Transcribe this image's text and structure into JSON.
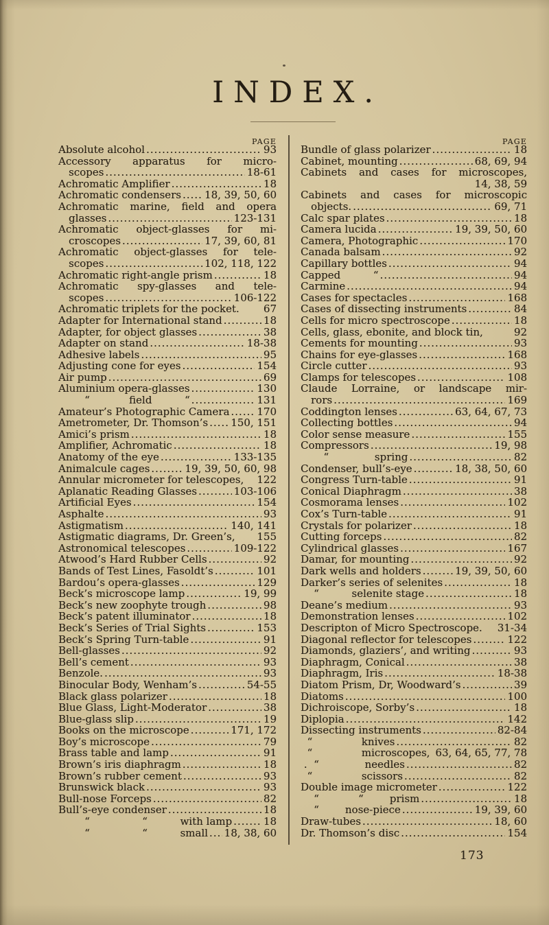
{
  "page": {
    "title": "INDEX.",
    "col_header": "PAGE",
    "page_number": "173",
    "paper_color": "#d4c59d",
    "ink_color": "#2a2217"
  },
  "columns": {
    "left": [
      {
        "t": "Absolute alcohol",
        "p": "93",
        "l": 1
      },
      {
        "t": "Accessory apparatus for micro-",
        "j": 1
      },
      {
        "t": "scopes",
        "p": "18-61",
        "l": 1,
        "i": 1
      },
      {
        "t": "Achromatic Amplifier",
        "p": "18",
        "l": 1
      },
      {
        "t": "Achromatic condensers",
        "p": "18, 39, 50, 60",
        "l": 1
      },
      {
        "t": "Achromatic marine, field and opera",
        "j": 1
      },
      {
        "t": "glasses",
        "p": "123-131",
        "l": 1,
        "i": 1
      },
      {
        "t": "Achromatic object-glasses for mi-",
        "j": 1
      },
      {
        "t": "croscopes",
        "p": "17, 39, 60, 81",
        "l": 1,
        "i": 1
      },
      {
        "t": "Achromatic object-glasses for tele-",
        "j": 1
      },
      {
        "t": "scopes",
        "p": "102, 118, 122",
        "l": 1,
        "i": 1
      },
      {
        "t": "Achromatic right-angle prism",
        "p": "18",
        "l": 1
      },
      {
        "t": "Achromatic spy-glasses and tele-",
        "j": 1
      },
      {
        "t": "scopes",
        "p": "106-122",
        "l": 1,
        "i": 1
      },
      {
        "t": "Achromatic triplets for the pocket.",
        "p": "67"
      },
      {
        "t": "Adapter for International stand",
        "p": "18",
        "l": 1
      },
      {
        "t": "Adapter, for object glasses",
        "p": "38",
        "l": 1
      },
      {
        "t": "Adapter on stand",
        "p": "18-38",
        "l": 1
      },
      {
        "t": "Adhesive labels",
        "p": "95",
        "l": 1
      },
      {
        "t": "Adjusting cone for eyes",
        "p": "154",
        "l": 1
      },
      {
        "t": "Air pump",
        "p": "69",
        "l": 1
      },
      {
        "t": "Aluminium opera-glasses",
        "p": "130",
        "l": 1
      },
      {
        "t": "        “            field          “",
        "p": "131",
        "l": 1
      },
      {
        "t": "Amateur’s Photographic Camera",
        "p": "170",
        "l": 1
      },
      {
        "t": "Ametrometer, Dr. Thomson’s",
        "p": "150, 151",
        "l": 1
      },
      {
        "t": "Amici’s prism",
        "p": "18",
        "l": 1
      },
      {
        "t": "Amplifier, Achromatic",
        "p": "18",
        "l": 1
      },
      {
        "t": "Anatomy of the eye",
        "p": "133-135",
        "l": 1
      },
      {
        "t": "Animalcule cages",
        "p": "19, 39, 50, 60, 98",
        "l": 1
      },
      {
        "t": "Annular micrometer for telescopes,",
        "p": "122"
      },
      {
        "t": "Aplanatic Reading Glasses",
        "p": "103-106",
        "l": 1
      },
      {
        "t": "Artificial Eyes",
        "p": "154",
        "l": 1
      },
      {
        "t": "Asphalte",
        "p": "93",
        "l": 1
      },
      {
        "t": "Astigmatism",
        "p": "140, 141",
        "l": 1
      },
      {
        "t": "Astigmatic diagrams, Dr. Green’s,",
        "p": "155"
      },
      {
        "t": "Astronomical telescopes",
        "p": "109-122",
        "l": 1
      },
      {
        "t": "Atwood’s Hard Rubber Cells",
        "p": "92",
        "l": 1
      },
      {
        "t": "Bands of Test Lines, Fasoldt’s",
        "p": "101",
        "l": 1
      },
      {
        "t": "Bardou’s opera-glasses",
        "p": "129",
        "l": 1
      },
      {
        "t": "Beck’s microscope lamp",
        "p": "19, 99",
        "l": 1
      },
      {
        "t": "Beck’s new zoophyte trough",
        "p": "98",
        "l": 1
      },
      {
        "t": "Beck’s patent illuminator",
        "p": "18",
        "l": 1
      },
      {
        "t": "Beck’s Series of Trial Sights",
        "p": "153",
        "l": 1
      },
      {
        "t": "Beck’s Spring Turn-table",
        "p": "91",
        "l": 1
      },
      {
        "t": "Bell-glasses",
        "p": "92",
        "l": 1
      },
      {
        "t": "Bell’s cement",
        "p": "93",
        "l": 1
      },
      {
        "t": "Benzole.",
        "p": "93",
        "l": 1
      },
      {
        "t": "Binocular Body, Wenham’s",
        "p": "54-55",
        "l": 1
      },
      {
        "t": "Black glass polarizer",
        "p": "18",
        "l": 1
      },
      {
        "t": "Blue Glass, Light-Moderator",
        "p": "38",
        "l": 1
      },
      {
        "t": "Blue-glass slip",
        "p": "19",
        "l": 1
      },
      {
        "t": "Books on the microscope",
        "p": "171, 172",
        "l": 1
      },
      {
        "t": "Boy’s microscope",
        "p": "79",
        "l": 1
      },
      {
        "t": "Brass table and lamp",
        "p": "91",
        "l": 1
      },
      {
        "t": "Brown’s iris diaphragm",
        "p": "18",
        "l": 1
      },
      {
        "t": "Brown’s rubber cement",
        "p": "93",
        "l": 1
      },
      {
        "t": "Brunswick black",
        "p": "93",
        "l": 1
      },
      {
        "t": "Bull-nose Forceps",
        "p": "82",
        "l": 1
      },
      {
        "t": "Bull’s-eye condenser",
        "p": "18",
        "l": 1
      },
      {
        "t": "        “                “          with lamp",
        "p": "18",
        "l": 1
      },
      {
        "t": "        “                “          small",
        "p": "18, 38, 60",
        "l": 1
      }
    ],
    "right": [
      {
        "t": "Bundle of glass polarizer",
        "p": "18",
        "l": 1
      },
      {
        "t": "Cabinet, mounting",
        "p": "68, 69, 94",
        "l": 1
      },
      {
        "t": "Cabinets and cases for microscopes,",
        "j": 1
      },
      {
        "t": "",
        "p": "14, 38, 59"
      },
      {
        "t": "Cabinets and cases for microscopic",
        "j": 1
      },
      {
        "t": "objects.",
        "p": "69, 71",
        "l": 1,
        "i": 1
      },
      {
        "t": "Calc spar plates",
        "p": "18",
        "l": 1
      },
      {
        "t": "Camera lucida",
        "p": "19, 39, 50, 60",
        "l": 1
      },
      {
        "t": "Camera, Photographic",
        "p": "170",
        "l": 1
      },
      {
        "t": "Canada balsam",
        "p": "92",
        "l": 1
      },
      {
        "t": "Capillary bottles",
        "p": "94",
        "l": 1
      },
      {
        "t": "Capped          “",
        "p": "94",
        "l": 1
      },
      {
        "t": "Carmine",
        "p": "94",
        "l": 1
      },
      {
        "t": "Cases for spectacles",
        "p": "168",
        "l": 1
      },
      {
        "t": "Cases of dissecting instruments",
        "p": "84",
        "l": 1
      },
      {
        "t": "Cells for micro spectroscope",
        "p": "18",
        "l": 1
      },
      {
        "t": "Cells, glass, ebonite, and block tin,",
        "p": "92"
      },
      {
        "t": "Cements for mounting",
        "p": "93",
        "l": 1
      },
      {
        "t": "Chains for eye-glasses",
        "p": "168",
        "l": 1
      },
      {
        "t": "Circle cutter",
        "p": "93",
        "l": 1
      },
      {
        "t": "Clamps for telescopes",
        "p": "108",
        "l": 1
      },
      {
        "t": "Claude Lorraine, or landscape mir-",
        "j": 1
      },
      {
        "t": "rors",
        "p": "169",
        "l": 1,
        "i": 1
      },
      {
        "t": "Coddington lenses",
        "p": "63, 64, 67, 73",
        "l": 1
      },
      {
        "t": "Collecting bottles",
        "p": "94",
        "l": 1
      },
      {
        "t": "Color sense measure",
        "p": "155",
        "l": 1
      },
      {
        "t": "Compressors",
        "p": "19, 98",
        "l": 1
      },
      {
        "t": "       “              spring",
        "p": "82",
        "l": 1
      },
      {
        "t": "Condenser, bull’s-eye",
        "p": "18, 38, 50, 60",
        "l": 1
      },
      {
        "t": "Congress Turn-table",
        "p": "91",
        "l": 1
      },
      {
        "t": "Conical Diaphragm",
        "p": "38",
        "l": 1
      },
      {
        "t": "Cosmorama lenses",
        "p": "102",
        "l": 1
      },
      {
        "t": "Cox’s Turn-table",
        "p": "91",
        "l": 1
      },
      {
        "t": "Crystals for polarizer",
        "p": "18",
        "l": 1
      },
      {
        "t": "Cutting forceps",
        "p": "82",
        "l": 1
      },
      {
        "t": "Cylindrical glasses",
        "p": "167",
        "l": 1
      },
      {
        "t": "Damar, for mounting",
        "p": "92",
        "l": 1
      },
      {
        "t": "Dark wells and holders",
        "p": "19, 39, 50, 60",
        "l": 1
      },
      {
        "t": "Darker’s series of selenites",
        "p": "18",
        "l": 1
      },
      {
        "t": "    “          selenite stage",
        "p": "18",
        "l": 1
      },
      {
        "t": "Deane’s medium",
        "p": "93",
        "l": 1
      },
      {
        "t": "Demonstration lenses",
        "p": "102",
        "l": 1
      },
      {
        "t": "Descripton of Micro Spectroscope.",
        "p": "31-34"
      },
      {
        "t": "Diagonal reflector for telescopes",
        "p": "122",
        "l": 1
      },
      {
        "t": "Diamonds, glaziers’, and writing",
        "p": "93",
        "l": 1
      },
      {
        "t": "Diaphragm, Conical",
        "p": "38",
        "l": 1
      },
      {
        "t": "Diaphragm, Iris",
        "p": "18-38",
        "l": 1
      },
      {
        "t": "Diatom Prism, Dr, Woodward’s",
        "p": "39",
        "l": 1
      },
      {
        "t": "Diatoms",
        "p": "100",
        "l": 1
      },
      {
        "t": "Dichroiscope, Sorby’s",
        "p": "18",
        "l": 1
      },
      {
        "t": "Diplopia",
        "p": "142",
        "l": 1
      },
      {
        "t": "Dissecting instruments",
        "p": "82-84",
        "l": 1
      },
      {
        "t": "  “               knives",
        "p": "82",
        "l": 1
      },
      {
        "t": "  “               microscopes,",
        "p": "63, 64, 65, 77, 78"
      },
      {
        "t": " .  “              needles",
        "p": "82",
        "l": 1
      },
      {
        "t": "  “               scissors",
        "p": "82",
        "l": 1
      },
      {
        "t": "Double image micrometer",
        "p": "122",
        "l": 1
      },
      {
        "t": "    “            “        prism",
        "p": "18",
        "l": 1
      },
      {
        "t": "    “        nose-piece",
        "p": "19, 39, 60",
        "l": 1
      },
      {
        "t": "Draw-tubes",
        "p": "18, 60",
        "l": 1
      },
      {
        "t": "Dr. Thomson’s disc",
        "p": "154",
        "l": 1
      }
    ]
  }
}
